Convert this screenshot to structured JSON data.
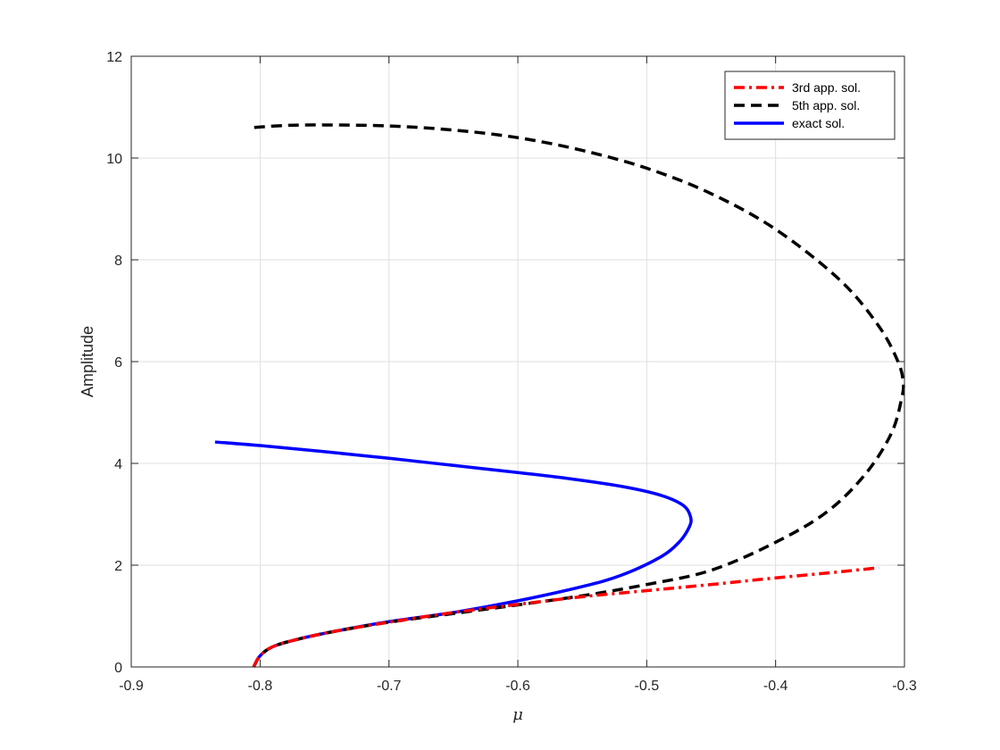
{
  "chart_data": {
    "type": "line",
    "title": "",
    "xlabel": "μ",
    "ylabel": "Amplitude",
    "xlim": [
      -0.9,
      -0.3
    ],
    "ylim": [
      0,
      12
    ],
    "xticks": [
      -0.9,
      -0.8,
      -0.7,
      -0.6,
      -0.5,
      -0.4,
      -0.3
    ],
    "yticks": [
      0,
      2,
      4,
      6,
      8,
      10,
      12
    ],
    "xtick_labels": [
      "-0.9",
      "-0.8",
      "-0.7",
      "-0.6",
      "-0.5",
      "-0.4",
      "-0.3"
    ],
    "ytick_labels": [
      "0",
      "2",
      "4",
      "6",
      "8",
      "10",
      "12"
    ],
    "grid": true,
    "legend_position": "top-right",
    "series": [
      {
        "name": "3rd app. sol.",
        "color": "#ff0000",
        "style": "dashdot",
        "points": [
          [
            -0.805,
            0.0
          ],
          [
            -0.8,
            0.22
          ],
          [
            -0.79,
            0.4
          ],
          [
            -0.77,
            0.55
          ],
          [
            -0.74,
            0.71
          ],
          [
            -0.7,
            0.88
          ],
          [
            -0.65,
            1.07
          ],
          [
            -0.6,
            1.23
          ],
          [
            -0.55,
            1.38
          ],
          [
            -0.5,
            1.5
          ],
          [
            -0.45,
            1.62
          ],
          [
            -0.4,
            1.75
          ],
          [
            -0.35,
            1.87
          ],
          [
            -0.32,
            1.95
          ]
        ]
      },
      {
        "name": "5th app. sol.",
        "color": "#000000",
        "style": "dashed",
        "points": [
          [
            -0.805,
            0.0
          ],
          [
            -0.8,
            0.22
          ],
          [
            -0.79,
            0.4
          ],
          [
            -0.77,
            0.55
          ],
          [
            -0.74,
            0.71
          ],
          [
            -0.7,
            0.88
          ],
          [
            -0.65,
            1.05
          ],
          [
            -0.6,
            1.22
          ],
          [
            -0.55,
            1.4
          ],
          [
            -0.5,
            1.62
          ],
          [
            -0.45,
            1.9
          ],
          [
            -0.4,
            2.45
          ],
          [
            -0.36,
            3.05
          ],
          [
            -0.33,
            3.8
          ],
          [
            -0.31,
            4.6
          ],
          [
            -0.302,
            5.3
          ],
          [
            -0.301,
            5.6
          ],
          [
            -0.305,
            6.0
          ],
          [
            -0.32,
            6.7
          ],
          [
            -0.35,
            7.6
          ],
          [
            -0.4,
            8.6
          ],
          [
            -0.45,
            9.3
          ],
          [
            -0.5,
            9.8
          ],
          [
            -0.55,
            10.15
          ],
          [
            -0.6,
            10.4
          ],
          [
            -0.65,
            10.55
          ],
          [
            -0.7,
            10.63
          ],
          [
            -0.75,
            10.65
          ],
          [
            -0.78,
            10.64
          ],
          [
            -0.805,
            10.6
          ]
        ]
      },
      {
        "name": "exact sol.",
        "color": "#0000ff",
        "style": "solid",
        "points": [
          [
            -0.805,
            0.0
          ],
          [
            -0.8,
            0.22
          ],
          [
            -0.79,
            0.4
          ],
          [
            -0.77,
            0.55
          ],
          [
            -0.74,
            0.71
          ],
          [
            -0.7,
            0.89
          ],
          [
            -0.65,
            1.07
          ],
          [
            -0.6,
            1.3
          ],
          [
            -0.55,
            1.58
          ],
          [
            -0.52,
            1.8
          ],
          [
            -0.49,
            2.15
          ],
          [
            -0.475,
            2.45
          ],
          [
            -0.467,
            2.75
          ],
          [
            -0.466,
            2.95
          ],
          [
            -0.472,
            3.18
          ],
          [
            -0.49,
            3.38
          ],
          [
            -0.52,
            3.55
          ],
          [
            -0.56,
            3.7
          ],
          [
            -0.6,
            3.82
          ],
          [
            -0.65,
            3.96
          ],
          [
            -0.7,
            4.1
          ],
          [
            -0.75,
            4.23
          ],
          [
            -0.8,
            4.35
          ],
          [
            -0.835,
            4.42
          ]
        ]
      }
    ]
  }
}
